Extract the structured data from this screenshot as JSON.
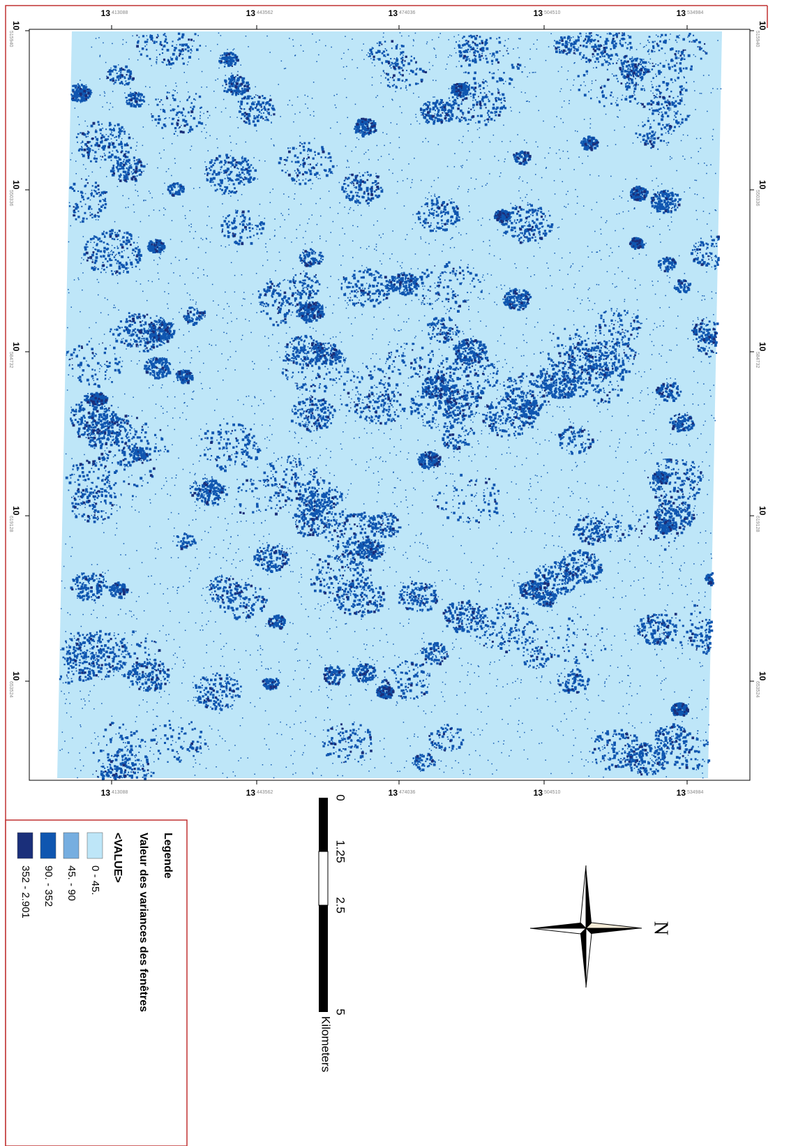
{
  "map": {
    "x_labels": [
      {
        "major": "13",
        "minor": "413088"
      },
      {
        "major": "13",
        "minor": "443562"
      },
      {
        "major": "13",
        "minor": "474036"
      },
      {
        "major": "13",
        "minor": "504510"
      },
      {
        "major": "13",
        "minor": "534984"
      }
    ],
    "y_labels": [
      {
        "major": "10",
        "minor": "515940"
      },
      {
        "major": "10",
        "minor": "550336"
      },
      {
        "major": "10",
        "minor": "584732"
      },
      {
        "major": "10",
        "minor": "619128"
      },
      {
        "major": "10",
        "minor": "653524"
      }
    ]
  },
  "legend": {
    "title": "Legende",
    "field": "Valeur des variances des fenêtres",
    "value_header": "<VALUE>",
    "classes": [
      {
        "label": "0 - 45.",
        "color": "#bee6f8"
      },
      {
        "label": "45. - 90",
        "color": "#76aee0"
      },
      {
        "label": "90. - 352",
        "color": "#0f56b0"
      },
      {
        "label": "352 - 2.901",
        "color": "#1a2f7a"
      }
    ]
  },
  "scale_bar": {
    "labels": [
      "0",
      "1.25",
      "2.5",
      "5"
    ],
    "unit": "Kilometers"
  },
  "north_arrow": {
    "label": "N"
  }
}
